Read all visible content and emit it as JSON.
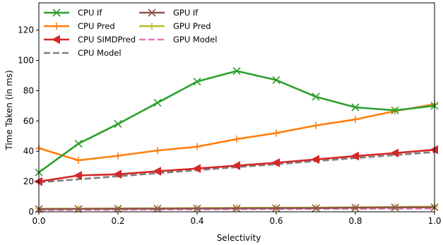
{
  "chart_data": {
    "type": "line",
    "xlabel": "Selectivity",
    "ylabel": "Time Taken (in ms)",
    "xlim": [
      0.0,
      1.0
    ],
    "ylim": [
      0,
      138
    ],
    "xticks": [
      0.0,
      0.2,
      0.4,
      0.6,
      0.8,
      1.0
    ],
    "xtick_labels": [
      "0.0",
      "0.2",
      "0.4",
      "0.6",
      "0.8",
      "1.0"
    ],
    "yticks": [
      0,
      20,
      40,
      60,
      80,
      100,
      120
    ],
    "ytick_labels": [
      "0",
      "20",
      "40",
      "60",
      "80",
      "100",
      "120"
    ],
    "grid": false,
    "legend_position": "top-left",
    "x": [
      0.0,
      0.1,
      0.2,
      0.3,
      0.4,
      0.5,
      0.6,
      0.7,
      0.8,
      0.9,
      1.0
    ],
    "series": [
      {
        "name": "CPU If",
        "color": "#2ca02c",
        "marker": "x",
        "dashed": false,
        "values": [
          26,
          45,
          58,
          72,
          86,
          93,
          87,
          76,
          69,
          67,
          70
        ]
      },
      {
        "name": "CPU Pred",
        "color": "#ff7f0e",
        "marker": "plus",
        "dashed": false,
        "values": [
          42,
          34,
          37,
          40.5,
          43,
          48,
          52,
          57,
          61,
          66.5,
          71
        ]
      },
      {
        "name": "CPU SIMDPred",
        "color": "#d62728",
        "marker": "triangle-left",
        "dashed": false,
        "values": [
          20,
          24,
          24.8,
          26.8,
          28.6,
          30.5,
          32.4,
          34.6,
          36.8,
          38.8,
          41
        ]
      },
      {
        "name": "CPU Model",
        "color": "#7f7f7f",
        "marker": "none",
        "dashed": true,
        "values": [
          19.5,
          21.5,
          23.5,
          25.5,
          27.5,
          29.5,
          31.4,
          33.5,
          35.5,
          37.5,
          39.5
        ]
      },
      {
        "name": "GPU If",
        "color": "#8c564b",
        "marker": "x",
        "dashed": false,
        "values": [
          1.8,
          1.9,
          2.0,
          2.1,
          2.2,
          2.3,
          2.4,
          2.5,
          2.7,
          2.9,
          3.0
        ]
      },
      {
        "name": "GPU Pred",
        "color": "#bcbd22",
        "marker": "plus",
        "dashed": false,
        "values": [
          2.0,
          2.1,
          2.2,
          2.3,
          2.4,
          2.6,
          2.7,
          2.8,
          3.0,
          3.2,
          3.4
        ]
      },
      {
        "name": "GPU Model",
        "color": "#e377c2",
        "marker": "none",
        "dashed": true,
        "values": [
          1.2,
          1.3,
          1.4,
          1.5,
          1.6,
          1.7,
          1.8,
          1.9,
          2.0,
          2.1,
          2.2
        ]
      }
    ]
  }
}
